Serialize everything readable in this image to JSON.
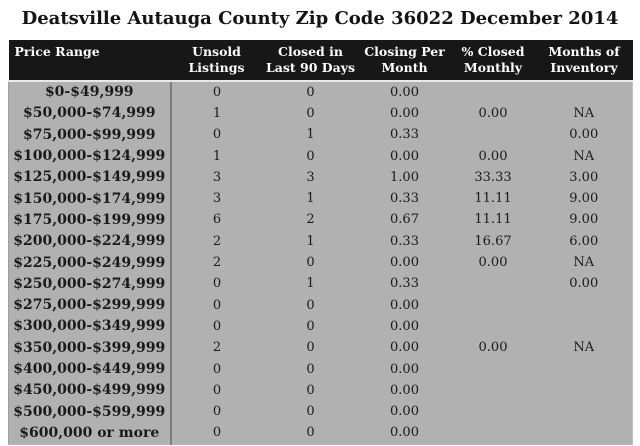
{
  "chart_data": {
    "type": "table",
    "title": "Deatsville Autauga County Zip Code 36022 December 2014",
    "columns": [
      "Price Range",
      "Unsold\nListings",
      "Closed in\nLast 90 Days",
      "Closing Per\nMonth",
      "% Closed\nMonthly",
      "Months of\nInventory"
    ],
    "rows": [
      [
        "$0-$49,999",
        "0",
        "0",
        "0.00",
        "",
        ""
      ],
      [
        "$50,000-$74,999",
        "1",
        "0",
        "0.00",
        "0.00",
        "NA"
      ],
      [
        "$75,000-$99,999",
        "0",
        "1",
        "0.33",
        "",
        "0.00"
      ],
      [
        "$100,000-$124,999",
        "1",
        "0",
        "0.00",
        "0.00",
        "NA"
      ],
      [
        "$125,000-$149,999",
        "3",
        "3",
        "1.00",
        "33.33",
        "3.00"
      ],
      [
        "$150,000-$174,999",
        "3",
        "1",
        "0.33",
        "11.11",
        "9.00"
      ],
      [
        "$175,000-$199,999",
        "6",
        "2",
        "0.67",
        "11.11",
        "9.00"
      ],
      [
        "$200,000-$224,999",
        "2",
        "1",
        "0.33",
        "16.67",
        "6.00"
      ],
      [
        "$225,000-$249,999",
        "2",
        "0",
        "0.00",
        "0.00",
        "NA"
      ],
      [
        "$250,000-$274,999",
        "0",
        "1",
        "0.33",
        "",
        "0.00"
      ],
      [
        "$275,000-$299,999",
        "0",
        "0",
        "0.00",
        "",
        ""
      ],
      [
        "$300,000-$349,999",
        "0",
        "0",
        "0.00",
        "",
        ""
      ],
      [
        "$350,000-$399,999",
        "2",
        "0",
        "0.00",
        "0.00",
        "NA"
      ],
      [
        "$400,000-$449,999",
        "0",
        "0",
        "0.00",
        "",
        ""
      ],
      [
        "$450,000-$499,999",
        "0",
        "0",
        "0.00",
        "",
        ""
      ],
      [
        "$500,000-$599,999",
        "0",
        "0",
        "0.00",
        "",
        ""
      ],
      [
        "$600,000 or more",
        "0",
        "0",
        "0.00",
        "",
        ""
      ]
    ],
    "legend": null,
    "grid": false
  },
  "colors": {
    "page_bg": "#ffffff",
    "header_bg": "#171717",
    "header_text": "#ffffff",
    "body_bg": "#b1b1b1",
    "body_text": "#1a1a1a",
    "column_divider": "#7d7d7d",
    "header_underline": "#e9e9e9"
  }
}
